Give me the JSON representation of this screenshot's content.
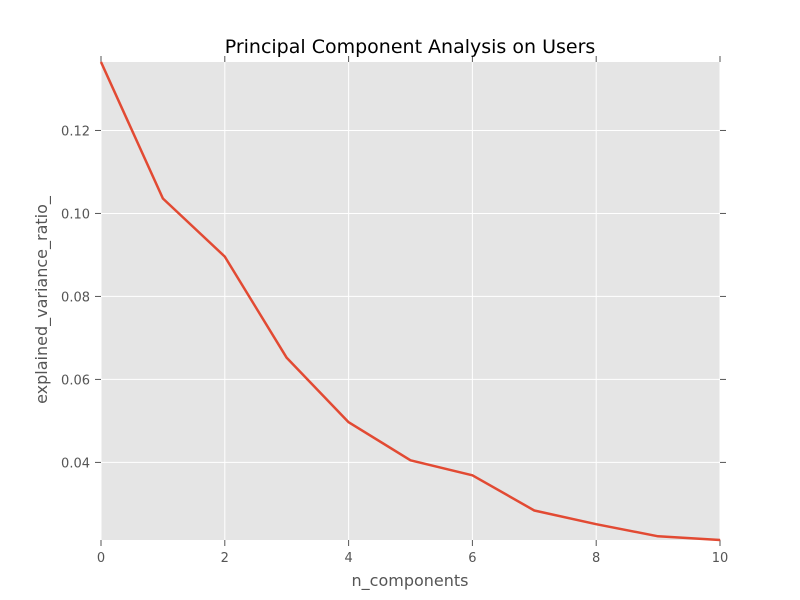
{
  "chart_data": {
    "type": "line",
    "title": "Principal Component Analysis on Users",
    "xlabel": "n_components",
    "ylabel": "explained_variance_ratio_",
    "xlim": [
      0,
      10
    ],
    "ylim": [
      0.0213,
      0.1365
    ],
    "x_ticks": [
      0,
      2,
      4,
      6,
      8,
      10
    ],
    "x_tick_labels": [
      "0",
      "2",
      "4",
      "6",
      "8",
      "10"
    ],
    "y_ticks": [
      0.04,
      0.06,
      0.08,
      0.1,
      0.12
    ],
    "y_tick_labels": [
      "0.04",
      "0.06",
      "0.08",
      "0.10",
      "0.12"
    ],
    "grid": true,
    "plot_background": "#e5e5e5",
    "series": [
      {
        "color": "#e24a33",
        "x": [
          0,
          1,
          2,
          3,
          4,
          5,
          6,
          7,
          8,
          9,
          10
        ],
        "values": [
          0.1365,
          0.1036,
          0.0896,
          0.0652,
          0.0497,
          0.0405,
          0.0369,
          0.0284,
          0.0251,
          0.0222,
          0.0213
        ]
      }
    ]
  }
}
